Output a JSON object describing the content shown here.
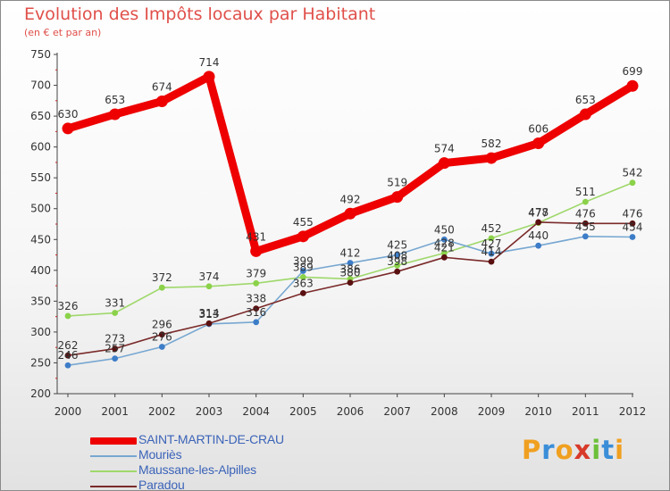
{
  "logo_text": "Proxiti",
  "chart_data": {
    "type": "line",
    "title": "Evolution des Impôts locaux par Habitant",
    "subtitle": "(en € et par an)",
    "xlabel": "",
    "ylabel": "",
    "x": [
      "2000",
      "2001",
      "2002",
      "2003",
      "2004",
      "2005",
      "2006",
      "2007",
      "2008",
      "2009",
      "2010",
      "2011",
      "2012"
    ],
    "ylim": [
      200,
      750
    ],
    "yticks": [
      200,
      250,
      300,
      350,
      400,
      450,
      500,
      550,
      600,
      650,
      700,
      750
    ],
    "grid": false,
    "legend_position": "bottom-left",
    "series": [
      {
        "name": "SAINT-MARTIN-DE-CRAU",
        "color": "#ee0000",
        "style": "thick",
        "values": [
          630,
          653,
          674,
          714,
          431,
          455,
          492,
          519,
          574,
          582,
          606,
          653,
          699
        ],
        "labels": [
          "630",
          "653",
          "674",
          "714",
          "431",
          "455",
          "492",
          "519",
          "574",
          "582",
          "606",
          "653",
          "699"
        ]
      },
      {
        "name": "Mouriès",
        "color": "#77a7d1",
        "marker": "#3d7dc8",
        "values": [
          246,
          257,
          276,
          313,
          316,
          399,
          412,
          425,
          450,
          427,
          440,
          455,
          454
        ],
        "labels": [
          "246",
          "257",
          "276",
          "313",
          "316",
          "399",
          "412",
          "425",
          "450",
          "427",
          "440",
          "455",
          "454"
        ]
      },
      {
        "name": "Maussane-les-Alpilles",
        "color": "#9fd86b",
        "marker": "#8bd24a",
        "values": [
          326,
          331,
          372,
          374,
          379,
          389,
          386,
          408,
          428,
          452,
          477,
          511,
          542
        ],
        "labels": [
          "326",
          "331",
          "372",
          "374",
          "379",
          "389",
          "386",
          "408",
          "428",
          "452",
          "477",
          "511",
          "542"
        ]
      },
      {
        "name": "Paradou",
        "color": "#7a2a2a",
        "marker": "#5a1010",
        "values": [
          262,
          273,
          296,
          314,
          338,
          363,
          380,
          398,
          421,
          414,
          478,
          476,
          476
        ],
        "labels": [
          "262",
          "273",
          "296",
          "314",
          "338",
          "363",
          "380",
          "398",
          "421",
          "414",
          "478",
          "476",
          "476"
        ]
      }
    ]
  }
}
